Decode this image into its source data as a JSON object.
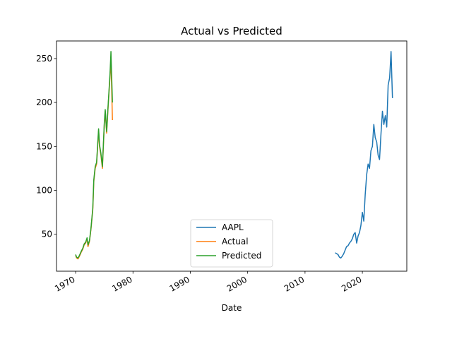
{
  "chart_data": {
    "type": "line",
    "title": "Actual vs Predicted",
    "xlabel": "Date",
    "ylabel": "",
    "xlim": [
      "1966-09-01",
      "2027-10-01"
    ],
    "ylim": [
      8,
      270
    ],
    "x_ticks": [
      "1970",
      "1980",
      "1990",
      "2000",
      "2010",
      "2020"
    ],
    "y_ticks": [
      50,
      100,
      150,
      200,
      250
    ],
    "grid": false,
    "legend_position": "bottom-center",
    "series": [
      {
        "name": "AAPL",
        "color": "#1f77b4",
        "x": [
          "2015-04-01",
          "2015-07-01",
          "2015-10-01",
          "2016-01-01",
          "2016-04-01",
          "2016-07-01",
          "2016-10-01",
          "2017-01-01",
          "2017-04-01",
          "2017-07-01",
          "2017-10-01",
          "2018-01-01",
          "2018-04-01",
          "2018-07-01",
          "2018-10-01",
          "2019-01-01",
          "2019-04-01",
          "2019-07-01",
          "2019-10-01",
          "2020-01-01",
          "2020-04-01",
          "2020-07-01",
          "2020-10-01",
          "2021-01-01",
          "2021-04-01",
          "2021-07-01",
          "2021-10-01",
          "2022-01-01",
          "2022-04-01",
          "2022-07-01",
          "2022-10-01",
          "2023-01-01",
          "2023-04-01",
          "2023-07-01",
          "2023-10-01",
          "2024-01-01",
          "2024-04-01",
          "2024-07-01",
          "2024-10-01",
          "2025-01-01",
          "2025-04-01"
        ],
        "y": [
          29,
          28,
          27,
          24,
          23,
          25,
          28,
          32,
          36,
          37,
          40,
          42,
          45,
          50,
          52,
          40,
          48,
          52,
          60,
          75,
          65,
          95,
          118,
          130,
          125,
          145,
          150,
          175,
          160,
          155,
          140,
          135,
          165,
          190,
          175,
          185,
          172,
          220,
          228,
          258,
          205
        ]
      },
      {
        "name": "Actual",
        "color": "#ff7f0e",
        "x": [
          "1970-01-01",
          "1970-03-01",
          "1970-06-01",
          "1970-09-01",
          "1971-01-01",
          "1971-04-01",
          "1971-07-01",
          "1971-10-01",
          "1972-01-01",
          "1972-03-01",
          "1972-06-01",
          "1972-09-01",
          "1973-01-01",
          "1973-03-01",
          "1973-06-01",
          "1973-09-01",
          "1974-01-01",
          "1974-03-01",
          "1974-06-01",
          "1974-09-01",
          "1975-01-01",
          "1975-03-01",
          "1975-06-01",
          "1975-09-01",
          "1976-01-01",
          "1976-03-01",
          "1976-06-01"
        ],
        "y": [
          26,
          23,
          22,
          25,
          30,
          33,
          38,
          40,
          45,
          36,
          42,
          55,
          78,
          110,
          125,
          130,
          168,
          150,
          140,
          125,
          175,
          190,
          165,
          195,
          230,
          250,
          180
        ]
      },
      {
        "name": "Predicted",
        "color": "#2ca02c",
        "x": [
          "1970-01-01",
          "1970-03-01",
          "1970-06-01",
          "1970-09-01",
          "1971-01-01",
          "1971-04-01",
          "1971-07-01",
          "1971-10-01",
          "1972-01-01",
          "1972-03-01",
          "1972-06-01",
          "1972-09-01",
          "1973-01-01",
          "1973-03-01",
          "1973-06-01",
          "1973-09-01",
          "1974-01-01",
          "1974-03-01",
          "1974-06-01",
          "1974-09-01",
          "1975-01-01",
          "1975-03-01",
          "1975-06-01",
          "1975-09-01",
          "1976-01-01",
          "1976-03-01",
          "1976-06-01"
        ],
        "y": [
          27,
          24,
          23,
          26,
          31,
          34,
          39,
          41,
          46,
          38,
          43,
          56,
          80,
          112,
          127,
          132,
          170,
          152,
          142,
          127,
          177,
          192,
          167,
          197,
          233,
          258,
          200
        ]
      }
    ]
  }
}
